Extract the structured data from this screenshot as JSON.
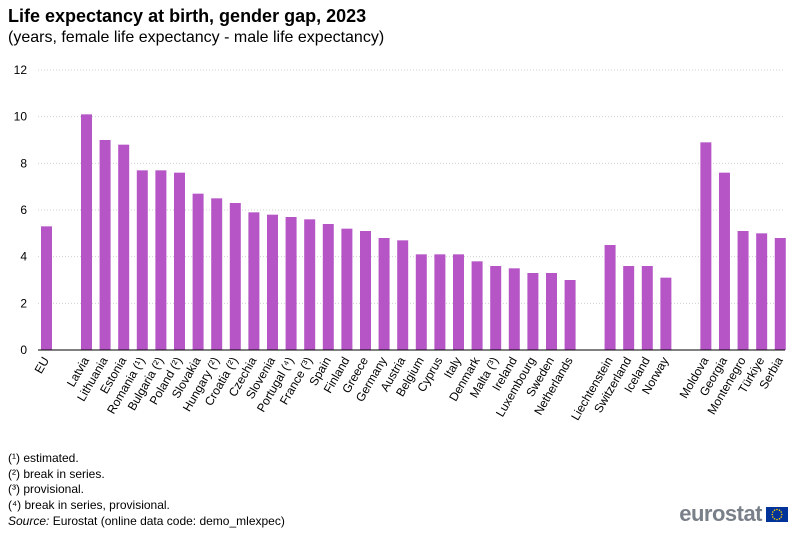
{
  "title": "Life expectancy at birth, gender gap, 2023",
  "subtitle": "(years, female life expectancy - male life expectancy)",
  "chart_data": {
    "type": "bar",
    "title": "Life expectancy at birth, gender gap, 2023",
    "subtitle": "(years, female life expectancy - male life expectancy)",
    "xlabel": "",
    "ylabel": "",
    "ylim": [
      0,
      12
    ],
    "yticks": [
      0,
      2,
      4,
      6,
      8,
      10,
      12
    ],
    "grid": true,
    "bar_color": "#b656c6",
    "groups": [
      {
        "categories": [
          "EU"
        ],
        "values": [
          5.3
        ]
      },
      {
        "categories": [
          "Latvia",
          "Lithuania",
          "Estonia",
          "Romania (¹)",
          "Bulgaria (²)",
          "Poland (²)",
          "Slovakia",
          "Hungary (²)",
          "Croatia (²)",
          "Czechia",
          "Slovenia",
          "Portugal (⁴)",
          "France (³)",
          "Spain",
          "Finland",
          "Greece",
          "Germany",
          "Austria",
          "Belgium",
          "Cyprus",
          "Italy",
          "Denmark",
          "Malta (³)",
          "Ireland",
          "Luxembourg",
          "Sweden",
          "Netherlands"
        ],
        "values": [
          10.1,
          9.0,
          8.8,
          7.7,
          7.7,
          7.6,
          6.7,
          6.5,
          6.3,
          5.9,
          5.8,
          5.7,
          5.6,
          5.4,
          5.2,
          5.1,
          4.8,
          4.7,
          4.1,
          4.1,
          4.1,
          3.8,
          3.6,
          3.5,
          3.3,
          3.3,
          3.0
        ]
      },
      {
        "categories": [
          "Liechtenstein",
          "Switzerland",
          "Iceland",
          "Norway"
        ],
        "values": [
          4.5,
          3.6,
          3.6,
          3.1
        ]
      },
      {
        "categories": [
          "Moldova",
          "Georgia",
          "Montenegro",
          "Türkiye",
          "Serbia"
        ],
        "values": [
          8.9,
          7.6,
          5.1,
          5.0,
          4.8
        ]
      }
    ]
  },
  "footnotes": [
    "(¹) estimated.",
    "(²) break in series.",
    "(³) provisional.",
    "(⁴) break in series, provisional."
  ],
  "source": {
    "label": "Source:",
    "text": "Eurostat (online data code: demo_mlexpec)"
  },
  "logo": {
    "text": "eurostat"
  }
}
